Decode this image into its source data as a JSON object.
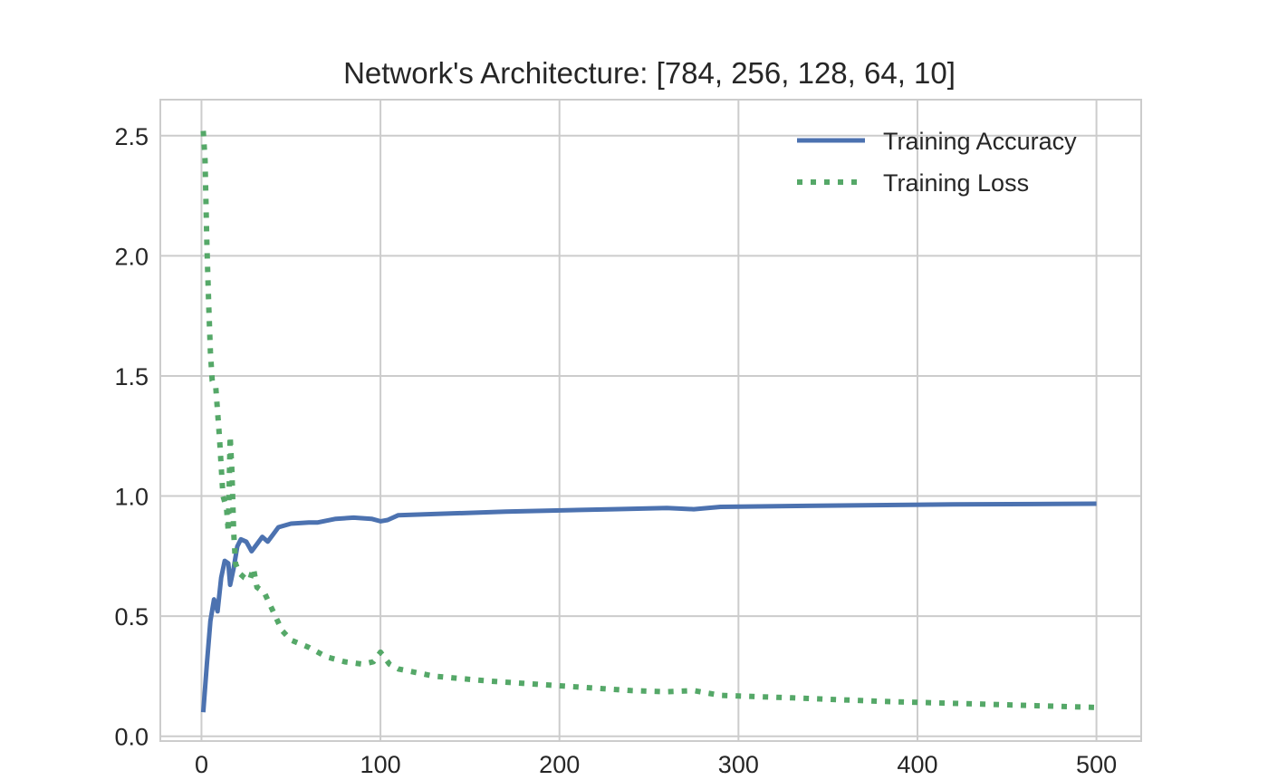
{
  "chart_data": {
    "type": "line",
    "title": "Network's Architecture: [784, 256, 128, 64, 10]",
    "xlabel": "",
    "ylabel": "",
    "xlim": [
      -23,
      525
    ],
    "ylim": [
      -0.02,
      2.65
    ],
    "x_ticks": [
      0,
      100,
      200,
      300,
      400,
      500
    ],
    "y_ticks": [
      0.0,
      0.5,
      1.0,
      1.5,
      2.0,
      2.5
    ],
    "x_tick_labels": [
      "0",
      "100",
      "200",
      "300",
      "400",
      "500"
    ],
    "y_tick_labels": [
      "0.0",
      "0.5",
      "1.0",
      "1.5",
      "2.0",
      "2.5"
    ],
    "grid": true,
    "legend_position": "top-right",
    "series": [
      {
        "name": "Training Accuracy",
        "color": "#4c72b0",
        "style": "solid",
        "points": [
          [
            1,
            0.1
          ],
          [
            3,
            0.3
          ],
          [
            5,
            0.48
          ],
          [
            7,
            0.57
          ],
          [
            9,
            0.52
          ],
          [
            11,
            0.66
          ],
          [
            13,
            0.73
          ],
          [
            15,
            0.72
          ],
          [
            16,
            0.63
          ],
          [
            18,
            0.7
          ],
          [
            20,
            0.79
          ],
          [
            22,
            0.82
          ],
          [
            25,
            0.81
          ],
          [
            28,
            0.77
          ],
          [
            31,
            0.8
          ],
          [
            34,
            0.83
          ],
          [
            37,
            0.81
          ],
          [
            40,
            0.84
          ],
          [
            43,
            0.87
          ],
          [
            50,
            0.885
          ],
          [
            60,
            0.89
          ],
          [
            65,
            0.89
          ],
          [
            75,
            0.905
          ],
          [
            85,
            0.91
          ],
          [
            95,
            0.905
          ],
          [
            100,
            0.895
          ],
          [
            104,
            0.9
          ],
          [
            110,
            0.92
          ],
          [
            130,
            0.925
          ],
          [
            170,
            0.935
          ],
          [
            230,
            0.945
          ],
          [
            260,
            0.95
          ],
          [
            275,
            0.945
          ],
          [
            290,
            0.955
          ],
          [
            350,
            0.96
          ],
          [
            420,
            0.965
          ],
          [
            500,
            0.968
          ]
        ]
      },
      {
        "name": "Training Loss",
        "color": "#55a868",
        "style": "dotted",
        "points": [
          [
            1,
            2.52
          ],
          [
            2,
            2.4
          ],
          [
            3,
            2.05
          ],
          [
            4,
            1.8
          ],
          [
            5,
            1.6
          ],
          [
            6,
            1.48
          ],
          [
            8,
            1.45
          ],
          [
            10,
            1.25
          ],
          [
            12,
            1.0
          ],
          [
            14,
            0.95
          ],
          [
            15,
            0.85
          ],
          [
            16,
            1.25
          ],
          [
            17,
            1.1
          ],
          [
            18,
            0.85
          ],
          [
            19,
            0.72
          ],
          [
            21,
            0.68
          ],
          [
            24,
            0.66
          ],
          [
            27,
            0.65
          ],
          [
            29,
            0.7
          ],
          [
            31,
            0.62
          ],
          [
            35,
            0.6
          ],
          [
            40,
            0.52
          ],
          [
            45,
            0.44
          ],
          [
            50,
            0.4
          ],
          [
            60,
            0.37
          ],
          [
            70,
            0.33
          ],
          [
            80,
            0.31
          ],
          [
            90,
            0.3
          ],
          [
            96,
            0.31
          ],
          [
            100,
            0.35
          ],
          [
            105,
            0.3
          ],
          [
            110,
            0.28
          ],
          [
            130,
            0.25
          ],
          [
            160,
            0.23
          ],
          [
            200,
            0.21
          ],
          [
            240,
            0.19
          ],
          [
            260,
            0.185
          ],
          [
            275,
            0.19
          ],
          [
            290,
            0.17
          ],
          [
            330,
            0.16
          ],
          [
            380,
            0.145
          ],
          [
            430,
            0.135
          ],
          [
            500,
            0.12
          ]
        ]
      }
    ]
  }
}
